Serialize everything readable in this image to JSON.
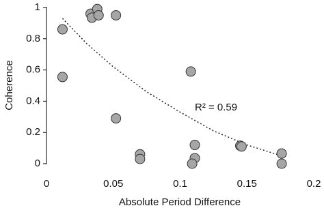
{
  "chart_data": {
    "type": "scatter",
    "x_label": "Absolute Period Difference",
    "y_label": "Coherence",
    "annotation": "R² = 0.59",
    "color": "#a6a6a6",
    "x": [
      0.012,
      0.012,
      0.033,
      0.034,
      0.038,
      0.039,
      0.052,
      0.052,
      0.07,
      0.07,
      0.108,
      0.111,
      0.111,
      0.109,
      0.145,
      0.146,
      0.176,
      0.176
    ],
    "y": [
      0.86,
      0.555,
      0.96,
      0.935,
      0.99,
      0.95,
      0.95,
      0.29,
      0.06,
      0.03,
      0.59,
      0.12,
      0.035,
      0.0,
      0.115,
      0.11,
      0.065,
      0.0
    ],
    "trendline": {
      "x": [
        0.012,
        0.03,
        0.05,
        0.075,
        0.1,
        0.125,
        0.15,
        0.176
      ],
      "y": [
        0.93,
        0.77,
        0.62,
        0.46,
        0.33,
        0.21,
        0.12,
        0.05
      ]
    },
    "xlim": [
      0,
      0.2
    ],
    "xticks": [
      0,
      0.05,
      0.1,
      0.15,
      0.2
    ],
    "ylim": [
      0,
      1
    ],
    "yticks": [
      0,
      0.2,
      0.4,
      0.6,
      0.8,
      1
    ]
  }
}
